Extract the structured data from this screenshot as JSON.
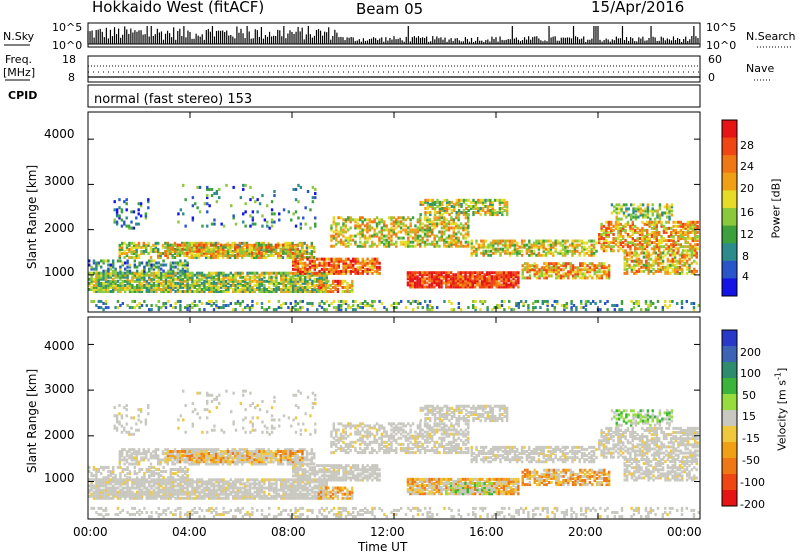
{
  "header": {
    "radar": "Hokkaido West (fitACF)",
    "beam": "Beam 05",
    "date": "15/Apr/2016",
    "mode": "normal (fast stereo) 153"
  },
  "left_labels": {
    "nsky": "N.Sky",
    "freq": "Freq.",
    "mhz": "[MHz]",
    "cpid": "CPID"
  },
  "right_labels": {
    "nsearch": "N.Search",
    "nave": "Nave"
  },
  "noise_panel": {
    "ticks_left": [
      "10^5",
      "10^0"
    ],
    "ticks_right": [
      "10^5",
      "10^0"
    ]
  },
  "freq_panel": {
    "ticks_left": [
      "18",
      "8"
    ],
    "ticks_right": [
      "60",
      "0"
    ]
  },
  "chart_data": [
    {
      "type": "heatmap",
      "name": "power",
      "xlabel": "",
      "ylabel": "Slant Range [km]",
      "ylim": [
        180,
        4600
      ],
      "yticks": [
        "1000",
        "2000",
        "3000",
        "4000"
      ],
      "colorbar_label": "Power [dB]",
      "colorbar_ticks": [
        "4",
        "8",
        "12",
        "16",
        "20",
        "24",
        "28"
      ],
      "colorbar_colors": [
        "#1414e6",
        "#2855c8",
        "#2e8b8b",
        "#3ca03c",
        "#8cc83c",
        "#e6dc28",
        "#f0a014",
        "#f07814",
        "#f04614",
        "#e61414"
      ]
    },
    {
      "type": "heatmap",
      "name": "velocity",
      "xlabel": "Time UT",
      "ylabel": "Slant Range [km]",
      "ylim": [
        180,
        4600
      ],
      "xticks": [
        "00:00",
        "04:00",
        "08:00",
        "12:00",
        "16:00",
        "20:00",
        "00:00"
      ],
      "yticks": [
        "1000",
        "2000",
        "3000",
        "4000"
      ],
      "colorbar_label": "Velocity [m s",
      "colorbar_label_sup": "-1",
      "colorbar_label_end": "]",
      "colorbar_ticks": [
        "200",
        "100",
        "50",
        "15",
        "-15",
        "-50",
        "-100",
        "-200"
      ],
      "colorbar_colors": [
        "#2838c8",
        "#3c64b4",
        "#2e8b6e",
        "#3cb43c",
        "#96dc3c",
        "#c8c8c0",
        "#f0c83c",
        "#f0a014",
        "#f07814",
        "#f04614",
        "#e61414"
      ]
    }
  ]
}
